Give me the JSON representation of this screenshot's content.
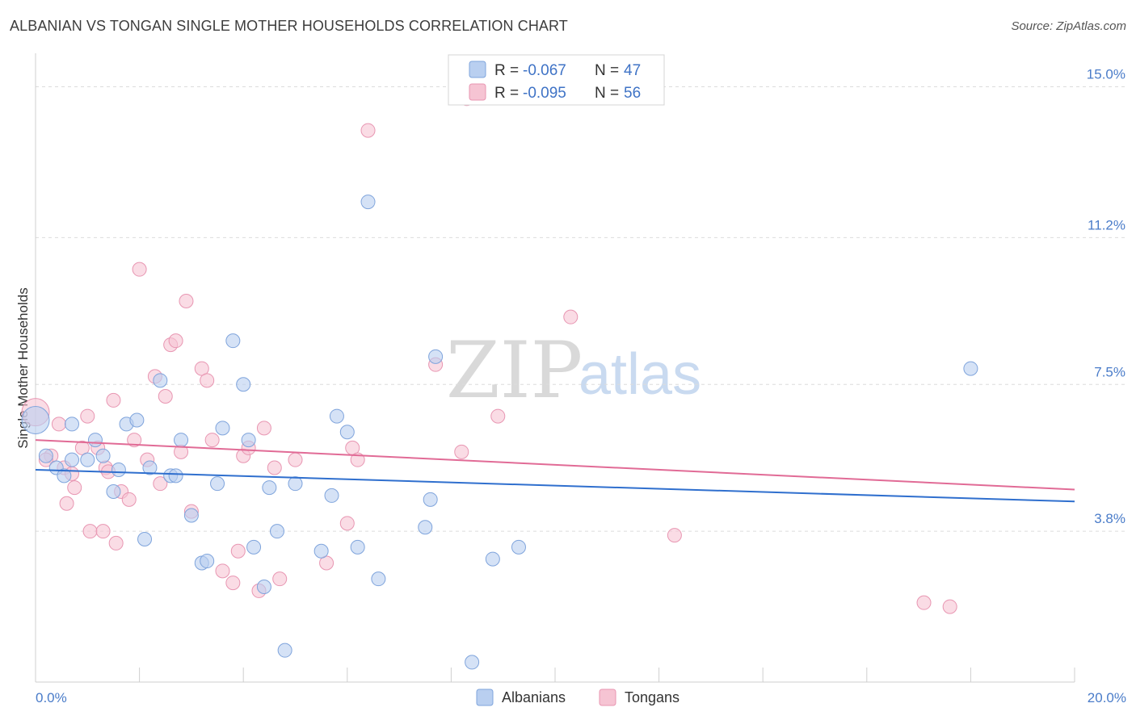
{
  "title": "ALBANIAN VS TONGAN SINGLE MOTHER HOUSEHOLDS CORRELATION CHART",
  "source": "Source: ZipAtlas.com",
  "watermark": {
    "part1": "ZIP",
    "part2": "atlas"
  },
  "colors": {
    "albanian_fill": "#b9cff0",
    "albanian_stroke": "#7fa4dc",
    "albanian_line": "#2f6fce",
    "tongan_fill": "#f6c4d3",
    "tongan_stroke": "#e896b2",
    "tongan_line": "#e16b96",
    "grid": "#dcdcdc",
    "tick_label": "#4a7cc9"
  },
  "legend": {
    "rows": [
      {
        "r_label": "R =",
        "r_value": "-0.067",
        "n_label": "N =",
        "n_value": "47"
      },
      {
        "r_label": "R =",
        "r_value": "-0.095",
        "n_label": "N =",
        "n_value": "56"
      }
    ]
  },
  "bottom_legend": {
    "albanians": "Albanians",
    "tongans": "Tongans"
  },
  "chart_data": {
    "type": "scatter",
    "title": "ALBANIAN VS TONGAN SINGLE MOTHER HOUSEHOLDS CORRELATION CHART",
    "xlabel": "",
    "ylabel": "Single Mother Households",
    "xlim": [
      0,
      20
    ],
    "ylim": [
      0,
      15.6
    ],
    "x_tick_labels": [
      "0.0%",
      "20.0%"
    ],
    "y_ticks": [
      3.8,
      7.5,
      11.2,
      15.0
    ],
    "y_tick_labels": [
      "3.8%",
      "7.5%",
      "11.2%",
      "15.0%"
    ],
    "grid": true,
    "legend_position": "top-center",
    "series": [
      {
        "name": "Albanians",
        "R": -0.067,
        "N": 47,
        "trend": {
          "x": [
            0,
            20
          ],
          "y": [
            5.35,
            4.55
          ]
        },
        "points": [
          {
            "x": 0.0,
            "y": 6.6,
            "big": true
          },
          {
            "x": 0.2,
            "y": 5.7
          },
          {
            "x": 0.4,
            "y": 5.4
          },
          {
            "x": 0.55,
            "y": 5.2
          },
          {
            "x": 0.7,
            "y": 6.5
          },
          {
            "x": 0.7,
            "y": 5.6
          },
          {
            "x": 1.0,
            "y": 5.6
          },
          {
            "x": 1.15,
            "y": 6.1
          },
          {
            "x": 1.3,
            "y": 5.7
          },
          {
            "x": 1.5,
            "y": 4.8
          },
          {
            "x": 1.6,
            "y": 5.35
          },
          {
            "x": 1.75,
            "y": 6.5
          },
          {
            "x": 1.95,
            "y": 6.6
          },
          {
            "x": 2.1,
            "y": 3.6
          },
          {
            "x": 2.2,
            "y": 5.4
          },
          {
            "x": 2.4,
            "y": 7.6
          },
          {
            "x": 2.6,
            "y": 5.2
          },
          {
            "x": 2.7,
            "y": 5.2
          },
          {
            "x": 2.8,
            "y": 6.1
          },
          {
            "x": 3.0,
            "y": 4.2
          },
          {
            "x": 3.2,
            "y": 3.0
          },
          {
            "x": 3.3,
            "y": 3.05
          },
          {
            "x": 3.5,
            "y": 5.0
          },
          {
            "x": 3.6,
            "y": 6.4
          },
          {
            "x": 3.8,
            "y": 8.6
          },
          {
            "x": 4.0,
            "y": 7.5
          },
          {
            "x": 4.1,
            "y": 6.1
          },
          {
            "x": 4.2,
            "y": 3.4
          },
          {
            "x": 4.4,
            "y": 2.4
          },
          {
            "x": 4.5,
            "y": 4.9
          },
          {
            "x": 4.65,
            "y": 3.8
          },
          {
            "x": 4.8,
            "y": 0.8
          },
          {
            "x": 5.0,
            "y": 5.0
          },
          {
            "x": 5.5,
            "y": 3.3
          },
          {
            "x": 5.7,
            "y": 4.7
          },
          {
            "x": 5.8,
            "y": 6.7
          },
          {
            "x": 6.0,
            "y": 6.3
          },
          {
            "x": 6.2,
            "y": 3.4
          },
          {
            "x": 6.4,
            "y": 12.1
          },
          {
            "x": 6.6,
            "y": 2.6
          },
          {
            "x": 7.5,
            "y": 3.9
          },
          {
            "x": 7.6,
            "y": 4.6
          },
          {
            "x": 7.7,
            "y": 8.2
          },
          {
            "x": 8.4,
            "y": 0.5
          },
          {
            "x": 8.8,
            "y": 3.1
          },
          {
            "x": 9.3,
            "y": 3.4
          },
          {
            "x": 18.0,
            "y": 7.9
          }
        ]
      },
      {
        "name": "Tongans",
        "R": -0.095,
        "N": 56,
        "trend": {
          "x": [
            0,
            20
          ],
          "y": [
            6.1,
            4.85
          ]
        },
        "points": [
          {
            "x": 0.0,
            "y": 6.8,
            "big": true
          },
          {
            "x": 0.3,
            "y": 5.7
          },
          {
            "x": 0.45,
            "y": 6.5
          },
          {
            "x": 0.55,
            "y": 5.4
          },
          {
            "x": 0.6,
            "y": 4.5
          },
          {
            "x": 0.7,
            "y": 5.25
          },
          {
            "x": 0.75,
            "y": 4.9
          },
          {
            "x": 0.9,
            "y": 5.9
          },
          {
            "x": 1.0,
            "y": 6.7
          },
          {
            "x": 1.05,
            "y": 3.8
          },
          {
            "x": 1.2,
            "y": 5.9
          },
          {
            "x": 1.3,
            "y": 3.8
          },
          {
            "x": 1.35,
            "y": 5.4
          },
          {
            "x": 1.4,
            "y": 5.3
          },
          {
            "x": 1.5,
            "y": 7.1
          },
          {
            "x": 1.55,
            "y": 3.5
          },
          {
            "x": 1.65,
            "y": 4.8
          },
          {
            "x": 1.8,
            "y": 4.6
          },
          {
            "x": 1.9,
            "y": 6.1
          },
          {
            "x": 2.0,
            "y": 10.4
          },
          {
            "x": 2.15,
            "y": 5.6
          },
          {
            "x": 2.3,
            "y": 7.7
          },
          {
            "x": 2.4,
            "y": 5.0
          },
          {
            "x": 2.5,
            "y": 7.2
          },
          {
            "x": 2.6,
            "y": 8.5
          },
          {
            "x": 2.7,
            "y": 8.6
          },
          {
            "x": 2.8,
            "y": 5.8
          },
          {
            "x": 2.9,
            "y": 9.6
          },
          {
            "x": 3.0,
            "y": 4.3
          },
          {
            "x": 3.2,
            "y": 7.9
          },
          {
            "x": 3.3,
            "y": 7.6
          },
          {
            "x": 3.4,
            "y": 6.1
          },
          {
            "x": 3.6,
            "y": 2.8
          },
          {
            "x": 3.8,
            "y": 2.5
          },
          {
            "x": 3.9,
            "y": 3.3
          },
          {
            "x": 4.0,
            "y": 5.7
          },
          {
            "x": 4.1,
            "y": 5.9
          },
          {
            "x": 4.3,
            "y": 2.3
          },
          {
            "x": 4.4,
            "y": 6.4
          },
          {
            "x": 4.6,
            "y": 5.4
          },
          {
            "x": 4.7,
            "y": 2.6
          },
          {
            "x": 5.0,
            "y": 5.6
          },
          {
            "x": 5.6,
            "y": 3.0
          },
          {
            "x": 6.0,
            "y": 4.0
          },
          {
            "x": 6.1,
            "y": 5.9
          },
          {
            "x": 6.2,
            "y": 5.6
          },
          {
            "x": 6.4,
            "y": 13.9
          },
          {
            "x": 7.7,
            "y": 8.0
          },
          {
            "x": 8.2,
            "y": 5.8
          },
          {
            "x": 8.3,
            "y": 14.7
          },
          {
            "x": 8.9,
            "y": 6.7
          },
          {
            "x": 10.3,
            "y": 9.2
          },
          {
            "x": 12.3,
            "y": 3.7
          },
          {
            "x": 17.1,
            "y": 2.0
          },
          {
            "x": 17.6,
            "y": 1.9
          },
          {
            "x": 0.2,
            "y": 5.6
          }
        ]
      }
    ]
  }
}
